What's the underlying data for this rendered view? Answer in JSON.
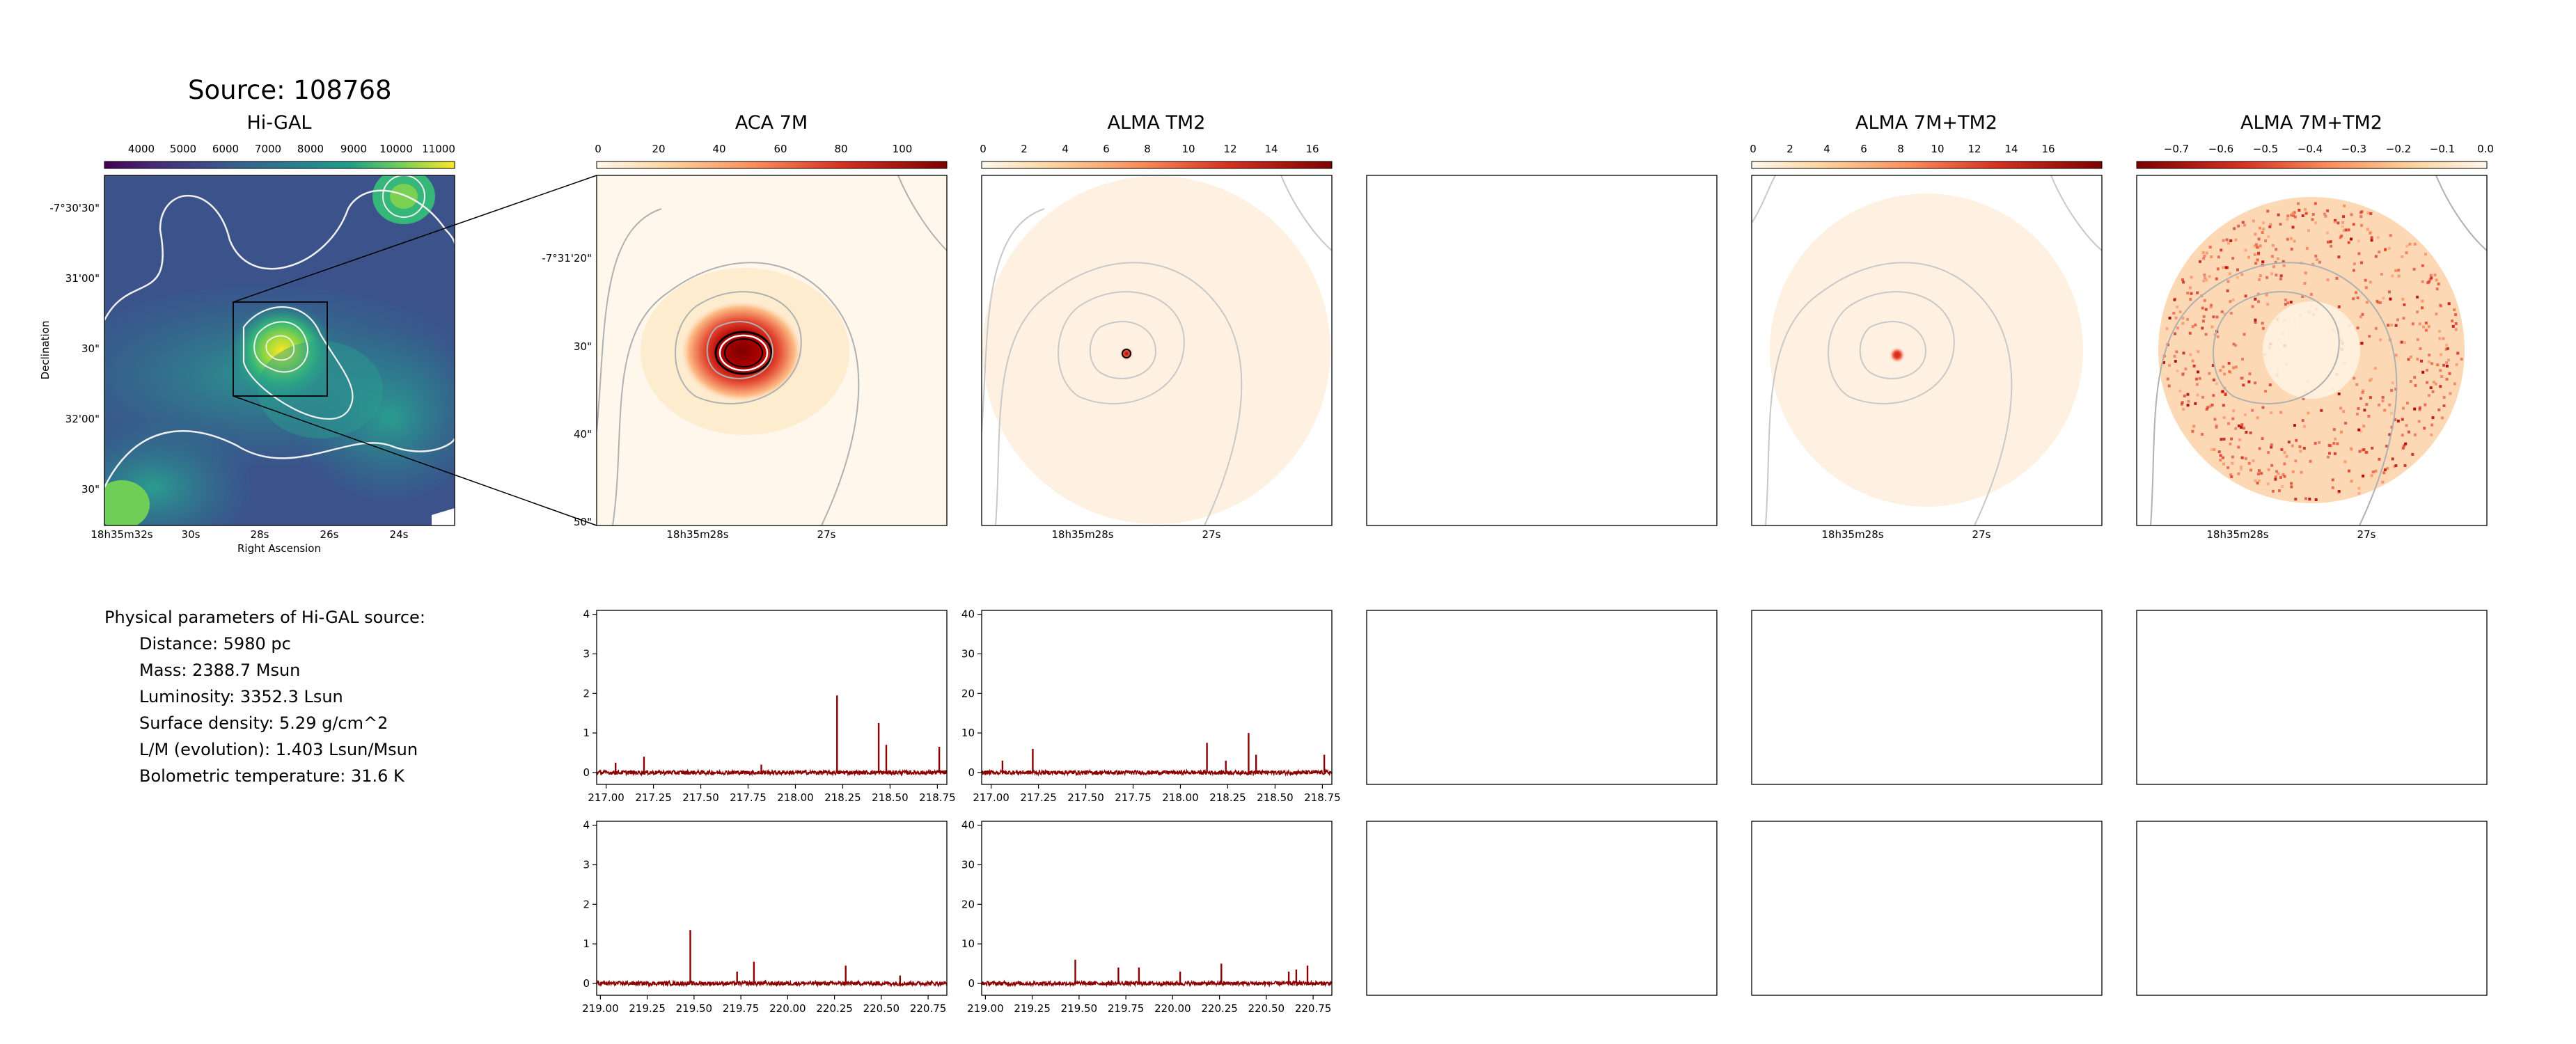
{
  "page_title": "Source: 108768",
  "colors": {
    "viridis_dark": "#440154",
    "viridis_mid": "#21918c",
    "viridis_bright": "#fde725",
    "orrd_light": "#fff7ec",
    "orrd_mid": "#fc8d59",
    "orrd_dark": "#7f0000",
    "spectrum_line": "#8b0000",
    "contour_gray": "#b0b0b0",
    "contour_white": "#f0f0f0"
  },
  "panels": {
    "higal": {
      "title": "Hi-GAL",
      "colorbar_ticks": [
        "4000",
        "5000",
        "6000",
        "7000",
        "8000",
        "9000",
        "10000",
        "11000"
      ],
      "colormap": "viridis",
      "ytick_labels": [
        "-7°30'30\"",
        "31'00\"",
        "30\"",
        "32'00\"",
        "30\""
      ],
      "xtick_labels": [
        "18h35m32s",
        "30s",
        "28s",
        "26s",
        "24s"
      ],
      "xlabel": "Right Ascension",
      "ylabel": "Declination"
    },
    "aca7m": {
      "title": "ACA 7M",
      "colorbar_ticks": [
        "0",
        "20",
        "40",
        "60",
        "80",
        "100"
      ],
      "colormap": "OrRd",
      "ytick_labels": [
        "-7°31'20\"",
        "30\"",
        "40\"",
        "50\""
      ],
      "xtick_labels": [
        "18h35m28s",
        "27s"
      ]
    },
    "tm2": {
      "title": "ALMA TM2",
      "colorbar_ticks": [
        "0",
        "2",
        "4",
        "6",
        "8",
        "10",
        "12",
        "14",
        "16"
      ],
      "colormap": "OrRd",
      "xtick_labels": [
        "18h35m28s",
        "27s"
      ]
    },
    "combined": {
      "title": "ALMA 7M+TM2",
      "colorbar_ticks": [
        "0",
        "2",
        "4",
        "6",
        "8",
        "10",
        "12",
        "14",
        "16"
      ],
      "colormap": "OrRd",
      "xtick_labels": [
        "18h35m28s",
        "27s"
      ]
    },
    "residual": {
      "title": "ALMA 7M+TM2",
      "colorbar_ticks": [
        "−0.7",
        "−0.6",
        "−0.5",
        "−0.4",
        "−0.3",
        "−0.2",
        "−0.1",
        "0.0"
      ],
      "colormap": "OrRd_r",
      "xtick_labels": [
        "18h35m28s",
        "27s"
      ]
    }
  },
  "physical_parameters": {
    "heading": "Physical parameters of Hi-GAL source:",
    "distance": "Distance: 5980 pc",
    "mass": "Mass: 2388.7 Msun",
    "luminosity": "Luminosity: 3352.3 Lsun",
    "surface_density": "Surface density: 5.29 g/cm^2",
    "lm_ratio": "L/M (evolution): 1.403 Lsun/Msun",
    "bolometric_temperature": "Bolometric temperature: 31.6 K"
  },
  "chart_data": [
    {
      "type": "line",
      "panel": "aca7m-spw-lower",
      "xlim": [
        216.95,
        218.8
      ],
      "ylim": [
        -0.3,
        4.1
      ],
      "xtick_labels": [
        "217.00",
        "217.25",
        "217.50",
        "217.75",
        "218.00",
        "218.25",
        "218.50",
        "218.75"
      ],
      "ytick_labels": [
        "0",
        "1",
        "2",
        "3",
        "4"
      ],
      "peaks": [
        {
          "x": 217.05,
          "y": 0.25
        },
        {
          "x": 217.2,
          "y": 0.4
        },
        {
          "x": 217.82,
          "y": 0.2
        },
        {
          "x": 218.22,
          "y": 1.95
        },
        {
          "x": 218.44,
          "y": 1.25
        },
        {
          "x": 218.48,
          "y": 0.7
        },
        {
          "x": 218.76,
          "y": 0.65
        }
      ]
    },
    {
      "type": "line",
      "panel": "tm2-spw-lower",
      "xlim": [
        216.95,
        218.8
      ],
      "ylim": [
        -3,
        41
      ],
      "xtick_labels": [
        "217.00",
        "217.25",
        "217.50",
        "217.75",
        "218.00",
        "218.25",
        "218.50",
        "218.75"
      ],
      "ytick_labels": [
        "0",
        "10",
        "20",
        "30",
        "40"
      ],
      "peaks": [
        {
          "x": 217.06,
          "y": 3.0
        },
        {
          "x": 217.22,
          "y": 6.0
        },
        {
          "x": 218.14,
          "y": 7.5
        },
        {
          "x": 218.24,
          "y": 3.0
        },
        {
          "x": 218.36,
          "y": 10.0
        },
        {
          "x": 218.4,
          "y": 4.5
        },
        {
          "x": 218.76,
          "y": 4.5
        }
      ]
    },
    {
      "type": "line",
      "panel": "aca7m-spw-upper",
      "xlim": [
        218.98,
        220.85
      ],
      "ylim": [
        -0.3,
        4.1
      ],
      "xtick_labels": [
        "219.00",
        "219.25",
        "219.50",
        "219.75",
        "220.00",
        "220.25",
        "220.50",
        "220.75"
      ],
      "ytick_labels": [
        "0",
        "1",
        "2",
        "3",
        "4"
      ],
      "peaks": [
        {
          "x": 219.48,
          "y": 1.35
        },
        {
          "x": 219.73,
          "y": 0.3
        },
        {
          "x": 219.82,
          "y": 0.55
        },
        {
          "x": 220.31,
          "y": 0.45
        },
        {
          "x": 220.6,
          "y": 0.2
        }
      ]
    },
    {
      "type": "line",
      "panel": "tm2-spw-upper",
      "xlim": [
        218.98,
        220.85
      ],
      "ylim": [
        -3,
        41
      ],
      "xtick_labels": [
        "219.00",
        "219.25",
        "219.50",
        "219.75",
        "220.00",
        "220.25",
        "220.50",
        "220.75"
      ],
      "ytick_labels": [
        "0",
        "10",
        "20",
        "30",
        "40"
      ],
      "peaks": [
        {
          "x": 219.48,
          "y": 6.0
        },
        {
          "x": 219.71,
          "y": 4.0
        },
        {
          "x": 219.82,
          "y": 4.0
        },
        {
          "x": 220.04,
          "y": 3.0
        },
        {
          "x": 220.26,
          "y": 5.0
        },
        {
          "x": 220.62,
          "y": 3.0
        },
        {
          "x": 220.66,
          "y": 3.5
        },
        {
          "x": 220.72,
          "y": 4.5
        }
      ]
    }
  ]
}
